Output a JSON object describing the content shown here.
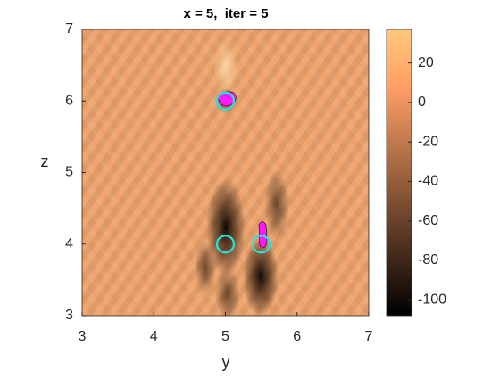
{
  "chart_data": {
    "type": "image",
    "title": "x = 5,  iter = 5",
    "x_label": "y",
    "y_label": "z",
    "xlim": [
      3,
      7
    ],
    "ylim": [
      3,
      7
    ],
    "xticks": [
      3,
      4,
      5,
      6,
      7
    ],
    "yticks": [
      3,
      4,
      5,
      6,
      7
    ],
    "colormap": "copper",
    "colorbar": {
      "clim": [
        -108,
        37
      ],
      "ticks": [
        20,
        0,
        -20,
        -40,
        -60,
        -80,
        -100
      ]
    },
    "markers": {
      "color": "#1ee6e6",
      "x": [
        5,
        5.5,
        5
      ],
      "y": [
        6,
        4,
        4
      ]
    }
  }
}
